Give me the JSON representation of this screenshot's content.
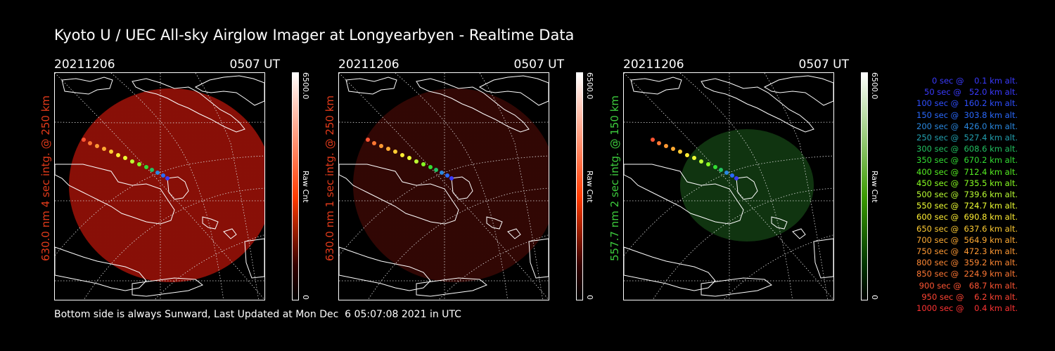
{
  "title": "Kyoto U / UEC All-sky Airglow Imager at Longyearbyen - Realtime Data",
  "panels": [
    {
      "date": "20211206",
      "time": "0507 UT",
      "ylabel": "630.0 nm 4 sec intg. @ 250 km",
      "label_color": "#e23a1a",
      "glow": "#a01208",
      "glow_opacity": 0.85
    },
    {
      "date": "20211206",
      "time": "0507 UT",
      "ylabel": "630.0 nm 1 sec intg. @ 250 km",
      "label_color": "#e23a1a",
      "glow": "#3a0805",
      "glow_opacity": 0.85
    },
    {
      "date": "20211206",
      "time": "0507 UT",
      "ylabel": "557.7 nm 2 sec intg. @ 150 km",
      "label_color": "#3dcc3d",
      "glow": "#123a12",
      "glow_opacity": 0.9
    }
  ],
  "colorbars": [
    {
      "max": "6500.0",
      "min": "0",
      "label": "Raw Cnt",
      "top_color": "#ffffff",
      "bottom_color": "#ff3a00"
    },
    {
      "max": "6500.0",
      "min": "0",
      "label": "Raw Cnt",
      "top_color": "#ffffff",
      "bottom_color": "#ff3a00"
    },
    {
      "max": "6500.0",
      "min": "0",
      "label": "Raw Cnt",
      "top_color": "#ffffff",
      "bottom_color": "#3a9a00"
    }
  ],
  "footer": "Bottom side is always Sunward, Last Updated at Mon Dec  6 05:07:08 2021 in UTC",
  "legend": [
    {
      "text": "   0 sec @    0.1 km alt.",
      "color": "#3a3aff"
    },
    {
      "text": "  50 sec @   52.0 km alt.",
      "color": "#3a3aff"
    },
    {
      "text": " 100 sec @  160.2 km alt.",
      "color": "#2f4fff"
    },
    {
      "text": " 150 sec @  303.8 km alt.",
      "color": "#2a6aff"
    },
    {
      "text": " 200 sec @  426.0 km alt.",
      "color": "#2a88e0"
    },
    {
      "text": " 250 sec @  527.4 km alt.",
      "color": "#22a0b0"
    },
    {
      "text": " 300 sec @  608.6 km alt.",
      "color": "#22c060"
    },
    {
      "text": " 350 sec @  670.2 km alt.",
      "color": "#33dd33"
    },
    {
      "text": " 400 sec @  712.4 km alt.",
      "color": "#55ee22"
    },
    {
      "text": " 450 sec @  735.5 km alt.",
      "color": "#88ff22"
    },
    {
      "text": " 500 sec @  739.6 km alt.",
      "color": "#bbff33"
    },
    {
      "text": " 550 sec @  724.7 km alt.",
      "color": "#eeff33"
    },
    {
      "text": " 600 sec @  690.8 km alt.",
      "color": "#ffee33"
    },
    {
      "text": " 650 sec @  637.6 km alt.",
      "color": "#ffcc33"
    },
    {
      "text": " 700 sec @  564.9 km alt.",
      "color": "#ffaa33"
    },
    {
      "text": " 750 sec @  472.3 km alt.",
      "color": "#ff9933"
    },
    {
      "text": " 800 sec @  359.2 km alt.",
      "color": "#ff8833"
    },
    {
      "text": " 850 sec @  224.9 km alt.",
      "color": "#ff7733"
    },
    {
      "text": " 900 sec @   68.7 km alt.",
      "color": "#ff5533"
    },
    {
      "text": " 950 sec @    6.2 km alt.",
      "color": "#ff4433"
    },
    {
      "text": "1000 sec @    0.4 km alt.",
      "color": "#ff3333"
    }
  ]
}
